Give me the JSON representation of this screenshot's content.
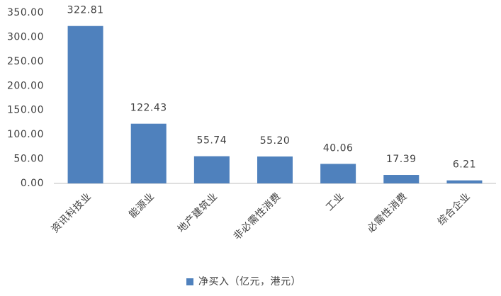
{
  "chart_data": {
    "type": "bar",
    "categories": [
      "资讯科技业",
      "能源业",
      "地产建筑业",
      "非必需性消费",
      "工业",
      "必需性消费",
      "综合企业"
    ],
    "series": [
      {
        "name": "净买入（亿元，港元）",
        "color": "#4f81bd",
        "values": [
          322.81,
          122.43,
          55.74,
          55.2,
          40.06,
          17.39,
          6.21
        ],
        "value_labels": [
          "322.81",
          "122.43",
          "55.74",
          "55.20",
          "40.06",
          "17.39",
          "6.21"
        ]
      }
    ],
    "ylim": [
      0,
      350
    ],
    "yticks": [
      {
        "value": 0,
        "label": "0.00"
      },
      {
        "value": 50,
        "label": "50.00"
      },
      {
        "value": 100,
        "label": "100.00"
      },
      {
        "value": 150,
        "label": "150.00"
      },
      {
        "value": 200,
        "label": "200.00"
      },
      {
        "value": 250,
        "label": "250.00"
      },
      {
        "value": 300,
        "label": "300.00"
      },
      {
        "value": 350,
        "label": "350.00"
      }
    ],
    "grid": false,
    "legend": "bottom"
  }
}
